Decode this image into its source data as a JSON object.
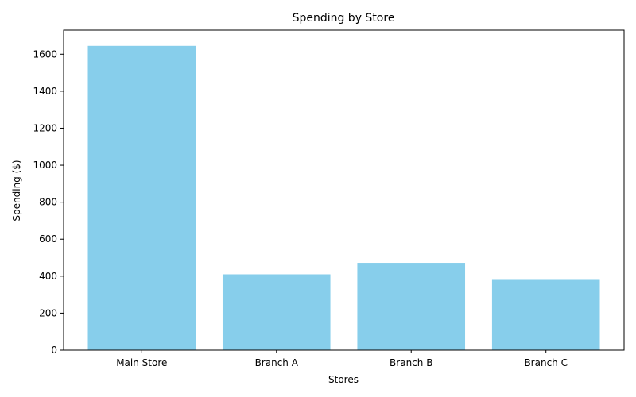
{
  "chart_data": {
    "type": "bar",
    "title": "Spending by Store",
    "xlabel": "Stores",
    "ylabel": "Spending ($)",
    "categories": [
      "Main Store",
      "Branch A",
      "Branch B",
      "Branch C"
    ],
    "values": [
      1645,
      410,
      472,
      380
    ],
    "ylim": [
      0,
      1730
    ],
    "yticks": [
      0,
      200,
      400,
      600,
      800,
      1000,
      1200,
      1400,
      1600
    ],
    "bar_color": "#87ceeb",
    "grid": false,
    "legend": "none"
  }
}
